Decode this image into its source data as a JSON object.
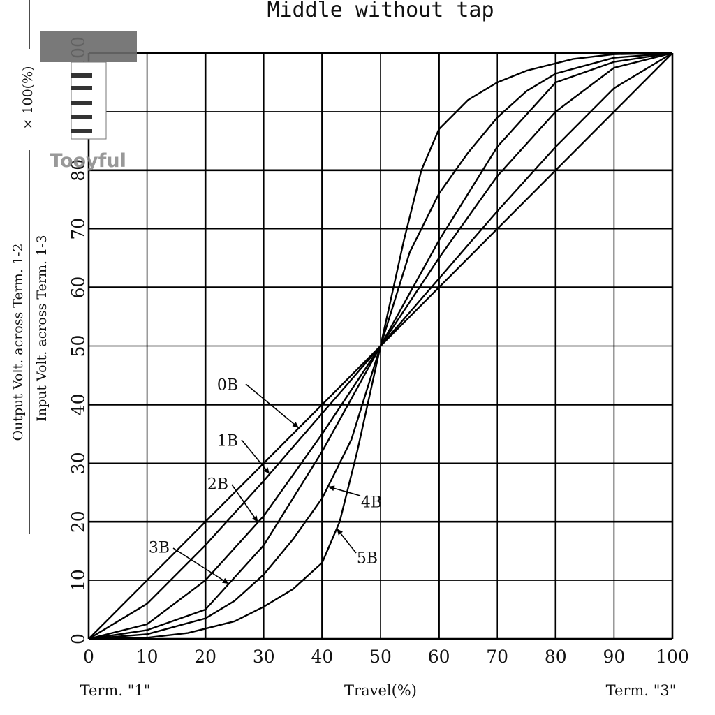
{
  "chart_data": {
    "type": "line",
    "title": "Middle without tap",
    "xlabel": "Travel(%)",
    "x_left_label": "Term. \"1\"",
    "x_right_label": "Term. \"3\"",
    "ylabel": {
      "prefix": "Output Volt. across Term. 1-2",
      "denominator": "Input Volt. across Term. 1-3",
      "suffix": "× 100(%)"
    },
    "xlim": [
      0,
      100
    ],
    "ylim": [
      0,
      100
    ],
    "x_ticks": [
      "0",
      "10",
      "20",
      "30",
      "40",
      "50",
      "60",
      "70",
      "80",
      "90",
      "100"
    ],
    "y_ticks": [
      "0",
      "10",
      "20",
      "30",
      "40",
      "50",
      "60",
      "70",
      "80",
      "90",
      "100"
    ],
    "grid": true,
    "series": [
      {
        "name": "0B",
        "x": [
          0,
          50,
          100
        ],
        "y": [
          0,
          50,
          100
        ]
      },
      {
        "name": "1B",
        "x": [
          0,
          10,
          20,
          30,
          40,
          50,
          60,
          70,
          80,
          90,
          100
        ],
        "y": [
          0,
          6,
          16,
          27,
          38.5,
          50,
          61.5,
          73,
          84,
          94,
          100
        ]
      },
      {
        "name": "2B",
        "x": [
          0,
          10,
          20,
          30,
          40,
          50,
          60,
          70,
          80,
          90,
          100
        ],
        "y": [
          0,
          2.5,
          10,
          21,
          35,
          50,
          65,
          79,
          90,
          97.5,
          100
        ]
      },
      {
        "name": "3B",
        "x": [
          0,
          10,
          20,
          30,
          40,
          50,
          60,
          70,
          80,
          90,
          100
        ],
        "y": [
          0,
          1.5,
          5,
          16,
          32,
          50,
          68,
          84,
          95,
          98.5,
          100
        ]
      },
      {
        "name": "4B",
        "x": [
          0,
          10,
          20,
          25,
          30,
          35,
          40,
          45,
          50,
          55,
          60,
          65,
          70,
          75,
          80,
          90,
          100
        ],
        "y": [
          0,
          0.8,
          3.5,
          6.5,
          11,
          17,
          24,
          34,
          50,
          66,
          76,
          83,
          89,
          93.5,
          96.5,
          99.2,
          100
        ]
      },
      {
        "name": "5B",
        "x": [
          0,
          10,
          17,
          25,
          30,
          35,
          40,
          43,
          46,
          50,
          54,
          57,
          60,
          65,
          70,
          75,
          83,
          90,
          100
        ],
        "y": [
          0,
          0.2,
          1,
          3,
          5.5,
          8.5,
          13,
          20,
          32,
          50,
          68,
          80,
          87,
          92,
          95,
          97,
          99,
          99.8,
          100
        ]
      }
    ],
    "annotations": [
      {
        "text": "0B",
        "series": "0B"
      },
      {
        "text": "1B",
        "series": "1B"
      },
      {
        "text": "2B",
        "series": "2B"
      },
      {
        "text": "3B",
        "series": "3B"
      },
      {
        "text": "4B",
        "series": "4B"
      },
      {
        "text": "5B",
        "series": "5B"
      }
    ]
  },
  "watermark": {
    "text": "Tooyful"
  }
}
